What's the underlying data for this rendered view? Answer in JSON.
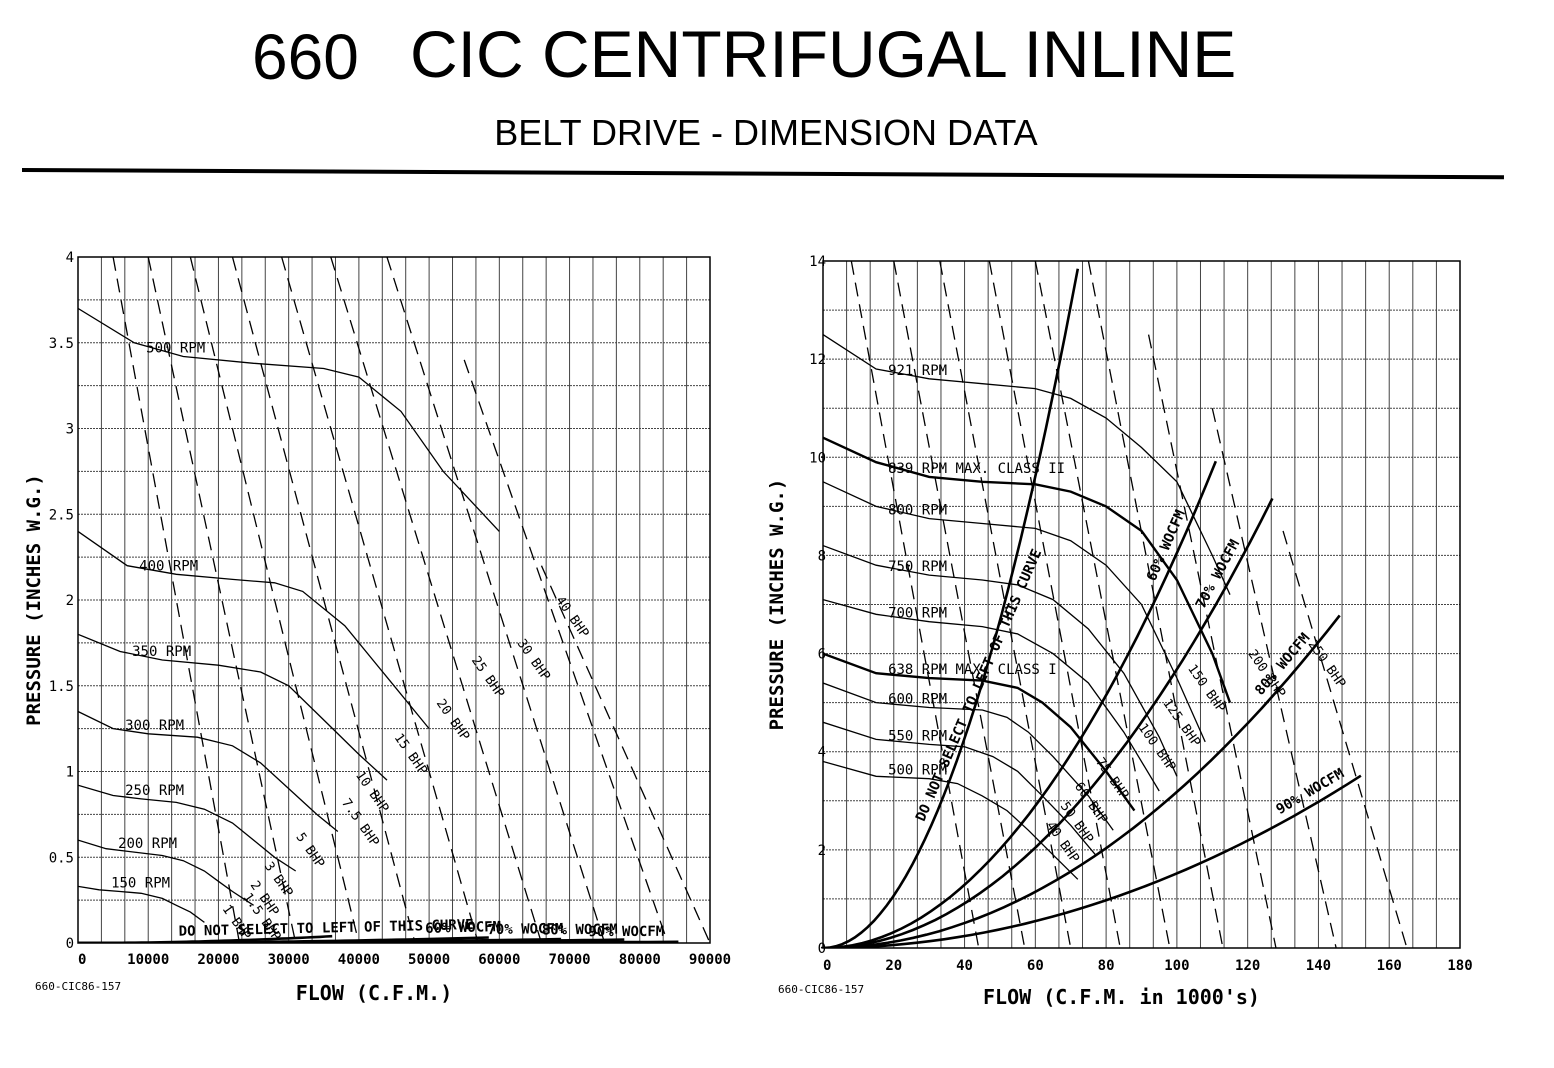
{
  "header": {
    "model": "660",
    "title": "CIC CENTRIFUGAL INLINE",
    "subtitle": "BELT DRIVE - DIMENSION DATA"
  },
  "colors": {
    "ink": "#000000",
    "grid": "#444444",
    "background": "#ffffff"
  },
  "chart_data": [
    {
      "type": "line",
      "drawing_code": "660-CIC86-157",
      "xlabel": "FLOW (C.F.M.)",
      "ylabel": "PRESSURE (INCHES W.G.)",
      "xlim": [
        0,
        90000
      ],
      "ylim": [
        0,
        4
      ],
      "x_ticks": [
        0,
        10000,
        20000,
        30000,
        40000,
        50000,
        60000,
        70000,
        80000,
        90000
      ],
      "x_tick_labels": [
        "0",
        "10000",
        "20000",
        "30000",
        "40000",
        "50000",
        "60000",
        "70000",
        "80000",
        "90000"
      ],
      "y_ticks": [
        0,
        0.5,
        1,
        1.5,
        2,
        2.5,
        3,
        3.5,
        4
      ],
      "y_tick_labels": [
        "0",
        "0.5",
        "1",
        "1.5",
        "2",
        "2.5",
        "3",
        "3.5",
        "4"
      ],
      "grid": true,
      "rpm_curves": [
        {
          "label": "500 RPM",
          "x": [
            0,
            8000,
            15000,
            25000,
            35000,
            40000,
            46000,
            52000,
            60000
          ],
          "y": [
            3.7,
            3.5,
            3.42,
            3.38,
            3.35,
            3.3,
            3.1,
            2.75,
            2.4
          ]
        },
        {
          "label": "400 RPM",
          "x": [
            0,
            7000,
            14000,
            22000,
            28000,
            32000,
            38000,
            44000,
            50000
          ],
          "y": [
            2.4,
            2.2,
            2.15,
            2.12,
            2.1,
            2.05,
            1.85,
            1.55,
            1.25
          ]
        },
        {
          "label": "350 RPM",
          "x": [
            0,
            6000,
            12000,
            20000,
            26000,
            30000,
            35000,
            40000,
            44000
          ],
          "y": [
            1.8,
            1.7,
            1.65,
            1.62,
            1.58,
            1.5,
            1.3,
            1.1,
            0.95
          ]
        },
        {
          "label": "300 RPM",
          "x": [
            0,
            5000,
            10000,
            17000,
            22000,
            26000,
            30000,
            34000,
            37000
          ],
          "y": [
            1.35,
            1.25,
            1.22,
            1.2,
            1.15,
            1.05,
            0.9,
            0.75,
            0.65
          ]
        },
        {
          "label": "250 RPM",
          "x": [
            0,
            5000,
            9000,
            14000,
            18000,
            22000,
            25000,
            28000,
            31000
          ],
          "y": [
            0.92,
            0.86,
            0.84,
            0.82,
            0.78,
            0.7,
            0.6,
            0.5,
            0.42
          ]
        },
        {
          "label": "200 RPM",
          "x": [
            0,
            4000,
            8000,
            12000,
            15000,
            18000,
            20000,
            22000,
            25000
          ],
          "y": [
            0.6,
            0.55,
            0.53,
            0.51,
            0.48,
            0.42,
            0.36,
            0.3,
            0.22
          ]
        },
        {
          "label": "150 RPM",
          "x": [
            0,
            3000,
            6000,
            9000,
            12000,
            14000,
            16000,
            18000
          ],
          "y": [
            0.33,
            0.31,
            0.3,
            0.29,
            0.26,
            0.22,
            0.18,
            0.12
          ]
        }
      ],
      "system_curves": [
        {
          "label": "DO NOT SELECT TO LEFT OF THIS CURVE",
          "k": 3.03e-11,
          "xmax": 36200
        },
        {
          "label": "60% WOCFM",
          "k": 9.36e-12,
          "xmax": 58500
        },
        {
          "label": "70% WOCFM",
          "k": 4.76e-12,
          "xmax": 68800
        },
        {
          "label": "80% WOCFM",
          "k": 3.24e-12,
          "xmax": 77800
        },
        {
          "label": "90% WOCFM",
          "k": 9.19e-13,
          "xmax": 85500
        }
      ],
      "bhp_labels": [
        "40 BHP",
        "30 BHP",
        "25 BHP",
        "20 BHP",
        "15 BHP",
        "10 BHP",
        "7.5 BHP",
        "5 BHP",
        "3 BHP",
        "2 BHP",
        "1.5 BHP",
        "1 BHP"
      ],
      "bhp_label_points": [
        {
          "x": 68000,
          "y": 2.0
        },
        {
          "x": 62500,
          "y": 1.75
        },
        {
          "x": 56000,
          "y": 1.65
        },
        {
          "x": 51000,
          "y": 1.4
        },
        {
          "x": 45000,
          "y": 1.2
        },
        {
          "x": 39500,
          "y": 0.98
        },
        {
          "x": 37500,
          "y": 0.82
        },
        {
          "x": 31000,
          "y": 0.62
        },
        {
          "x": 26500,
          "y": 0.45
        },
        {
          "x": 24500,
          "y": 0.34
        },
        {
          "x": 23500,
          "y": 0.27
        },
        {
          "x": 20500,
          "y": 0.2
        }
      ],
      "dashed_bhp_lines": [
        {
          "x": [
            5000,
            23000
          ],
          "y": [
            4,
            0
          ]
        },
        {
          "x": [
            10000,
            31000
          ],
          "y": [
            4,
            0
          ]
        },
        {
          "x": [
            16000,
            40000
          ],
          "y": [
            4,
            0
          ]
        },
        {
          "x": [
            22000,
            48000
          ],
          "y": [
            4,
            0
          ]
        },
        {
          "x": [
            29000,
            57000
          ],
          "y": [
            4,
            0
          ]
        },
        {
          "x": [
            36000,
            66000
          ],
          "y": [
            4,
            0
          ]
        },
        {
          "x": [
            44000,
            75000
          ],
          "y": [
            4,
            0
          ]
        },
        {
          "x": [
            55000,
            84000
          ],
          "y": [
            3.4,
            0
          ]
        },
        {
          "x": [
            66000,
            90000
          ],
          "y": [
            2.2,
            0
          ]
        }
      ]
    },
    {
      "type": "line",
      "drawing_code": "660-CIC86-157",
      "xlabel": "FLOW (C.F.M. in 1000's)",
      "ylabel": "PRESSURE (INCHES W.G.)",
      "xlim": [
        0,
        180
      ],
      "ylim": [
        0,
        14
      ],
      "x_ticks": [
        0,
        20,
        40,
        60,
        80,
        100,
        120,
        140,
        160,
        180
      ],
      "x_tick_labels": [
        "0",
        "20",
        "40",
        "60",
        "80",
        "100",
        "120",
        "140",
        "160",
        "180"
      ],
      "y_ticks": [
        0,
        2,
        4,
        6,
        8,
        10,
        12,
        14
      ],
      "y_tick_labels": [
        "0",
        "2",
        "4",
        "6",
        "8",
        "10",
        "12",
        "14"
      ],
      "grid": true,
      "rpm_curves": [
        {
          "label": "921 RPM",
          "x": [
            0,
            15,
            30,
            45,
            60,
            70,
            80,
            90,
            100,
            110,
            115
          ],
          "y": [
            12.5,
            11.8,
            11.6,
            11.5,
            11.4,
            11.2,
            10.8,
            10.2,
            9.5,
            8.0,
            7.2
          ]
        },
        {
          "label": "839 RPM MAX. CLASS II",
          "x": [
            0,
            15,
            30,
            45,
            60,
            70,
            80,
            90,
            100,
            110,
            115
          ],
          "y": [
            10.4,
            9.9,
            9.6,
            9.5,
            9.45,
            9.3,
            9.0,
            8.5,
            7.5,
            6.0,
            5.0
          ]
        },
        {
          "label": "800 RPM",
          "x": [
            0,
            15,
            30,
            45,
            60,
            70,
            80,
            90,
            100,
            108
          ],
          "y": [
            9.5,
            9.0,
            8.75,
            8.65,
            8.55,
            8.3,
            7.8,
            7.0,
            5.5,
            4.2
          ]
        },
        {
          "label": "750 RPM",
          "x": [
            0,
            15,
            30,
            45,
            55,
            65,
            75,
            85,
            95,
            100
          ],
          "y": [
            8.2,
            7.8,
            7.6,
            7.5,
            7.4,
            7.1,
            6.5,
            5.6,
            4.3,
            3.5
          ]
        },
        {
          "label": "700 RPM",
          "x": [
            0,
            15,
            30,
            45,
            55,
            65,
            75,
            85,
            95
          ],
          "y": [
            7.1,
            6.8,
            6.65,
            6.55,
            6.4,
            6.0,
            5.4,
            4.4,
            3.2
          ]
        },
        {
          "label": "638 RPM MAX. CLASS I",
          "x": [
            0,
            15,
            30,
            45,
            55,
            62,
            70,
            80,
            88
          ],
          "y": [
            6.0,
            5.6,
            5.5,
            5.45,
            5.3,
            5.0,
            4.5,
            3.6,
            2.8
          ]
        },
        {
          "label": "600 RPM",
          "x": [
            0,
            15,
            30,
            45,
            52,
            58,
            65,
            75,
            82
          ],
          "y": [
            5.4,
            5.0,
            4.9,
            4.85,
            4.7,
            4.4,
            3.9,
            3.1,
            2.4
          ]
        },
        {
          "label": "550 RPM",
          "x": [
            0,
            15,
            30,
            40,
            48,
            55,
            62,
            70,
            77
          ],
          "y": [
            4.6,
            4.25,
            4.15,
            4.1,
            3.9,
            3.6,
            3.1,
            2.5,
            1.9
          ]
        },
        {
          "label": "500 RPM",
          "x": [
            0,
            15,
            30,
            38,
            45,
            52,
            58,
            65,
            72
          ],
          "y": [
            3.8,
            3.5,
            3.45,
            3.35,
            3.1,
            2.8,
            2.4,
            1.9,
            1.4
          ]
        }
      ],
      "system_curves": [
        {
          "label": "DO NOT SELECT TO LEFT OF THIS CURVE",
          "k": 0.00267,
          "xmax": 72
        },
        {
          "label": "60% WOCFM",
          "k": 0.000805,
          "xmax": 111
        },
        {
          "label": "70% WOCFM",
          "k": 0.000568,
          "xmax": 127
        },
        {
          "label": "80% WOCFM",
          "k": 0.000318,
          "xmax": 146
        },
        {
          "label": "90% WOCFM",
          "k": 0.000152,
          "xmax": 152
        }
      ],
      "bhp_labels": [
        "250 BHP",
        "200 BHP",
        "150 BHP",
        "125 BHP",
        "100 BHP",
        "75 BHP",
        "60 BHP",
        "50 BHP",
        "40 BHP"
      ],
      "bhp_label_points": [
        {
          "x": 137,
          "y": 6.2
        },
        {
          "x": 120,
          "y": 6.0
        },
        {
          "x": 103,
          "y": 5.7
        },
        {
          "x": 96,
          "y": 5.0
        },
        {
          "x": 89,
          "y": 4.5
        },
        {
          "x": 77,
          "y": 3.8
        },
        {
          "x": 71,
          "y": 3.3
        },
        {
          "x": 67,
          "y": 2.9
        },
        {
          "x": 63,
          "y": 2.5
        }
      ],
      "dashed_bhp_lines": [
        {
          "x": [
            8,
            44
          ],
          "y": [
            14,
            0
          ]
        },
        {
          "x": [
            20,
            57
          ],
          "y": [
            14,
            0
          ]
        },
        {
          "x": [
            33,
            70
          ],
          "y": [
            14,
            0
          ]
        },
        {
          "x": [
            47,
            84
          ],
          "y": [
            14,
            0
          ]
        },
        {
          "x": [
            60,
            98
          ],
          "y": [
            14,
            0
          ]
        },
        {
          "x": [
            75,
            113
          ],
          "y": [
            14,
            0
          ]
        },
        {
          "x": [
            92,
            128
          ],
          "y": [
            12.5,
            0
          ]
        },
        {
          "x": [
            110,
            145
          ],
          "y": [
            11,
            0
          ]
        },
        {
          "x": [
            130,
            165
          ],
          "y": [
            8.5,
            0
          ]
        }
      ]
    }
  ]
}
